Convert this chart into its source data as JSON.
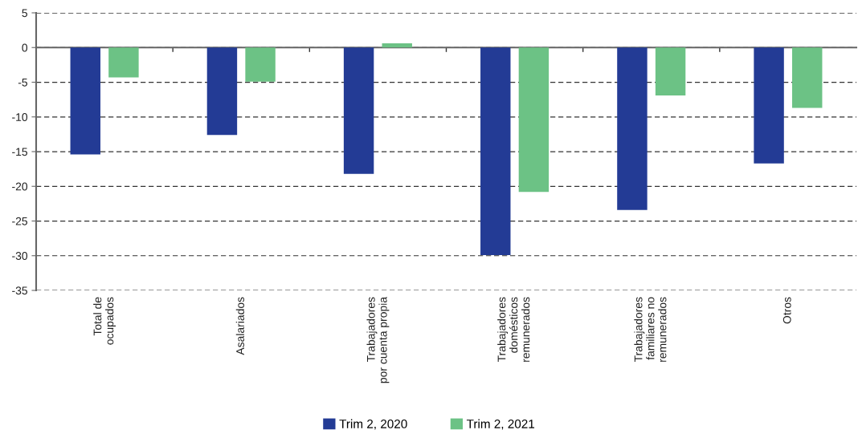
{
  "chart_data": {
    "type": "bar",
    "categories": [
      "Total de\nocupados",
      "Asalariados",
      "Trabajadores\npor cuenta propia",
      "Trabajadores\ndomésticos\nremunerados",
      "Trabajadores\nfamiliares no\nremunerados",
      "Otros"
    ],
    "series": [
      {
        "name": "Trim 2, 2020",
        "color": "#233b95",
        "values": [
          -15.4,
          -12.6,
          -18.2,
          -29.9,
          -23.4,
          -16.7
        ]
      },
      {
        "name": "Trim 2, 2021",
        "color": "#6cc285",
        "values": [
          -4.3,
          -4.9,
          0.6,
          -20.8,
          -6.9,
          -8.7
        ]
      }
    ],
    "ylim": [
      -35,
      5
    ],
    "yticks": [
      -35,
      -30,
      -25,
      -20,
      -15,
      -10,
      -5,
      0,
      5
    ],
    "grid": "y",
    "legend": "bottom"
  }
}
